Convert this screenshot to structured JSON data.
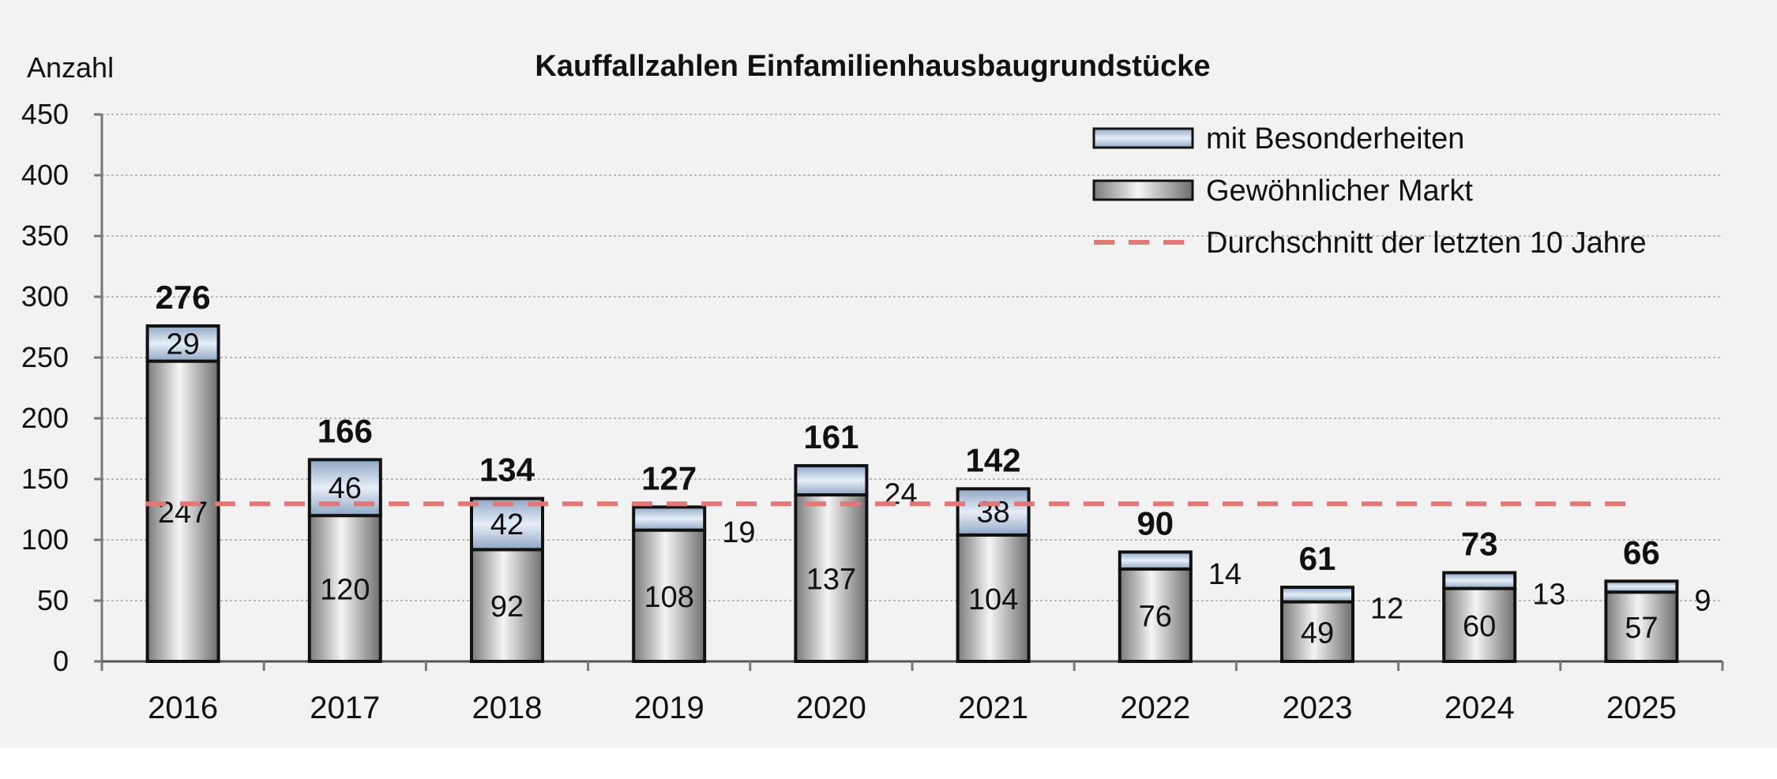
{
  "chart_data": {
    "type": "bar",
    "stacked": true,
    "title": "Kauffallzahlen Einfamilienhausbaugrundstücke",
    "ylabel": "Anzahl",
    "xlabel": "",
    "ylim": [
      0,
      450
    ],
    "yticks": [
      0,
      50,
      100,
      150,
      200,
      250,
      300,
      350,
      400,
      450
    ],
    "grid": true,
    "legend_position": "top-right",
    "categories": [
      "2016",
      "2017",
      "2018",
      "2019",
      "2020",
      "2021",
      "2022",
      "2023",
      "2024",
      "2025"
    ],
    "series": [
      {
        "name": "Gewöhnlicher Markt",
        "values": [
          247,
          120,
          92,
          108,
          137,
          104,
          76,
          49,
          60,
          57
        ],
        "color": "#a6a6a6"
      },
      {
        "name": "mit Besonderheiten",
        "values": [
          29,
          46,
          42,
          19,
          24,
          38,
          14,
          12,
          13,
          9
        ],
        "color": "#b8c8dc"
      }
    ],
    "totals": [
      276,
      166,
      134,
      127,
      161,
      142,
      90,
      61,
      73,
      66
    ],
    "average_line": {
      "name": "Durchschnitt der letzten 10 Jahre",
      "value": 129.6,
      "color": "#e07878",
      "style": "dashed"
    }
  }
}
